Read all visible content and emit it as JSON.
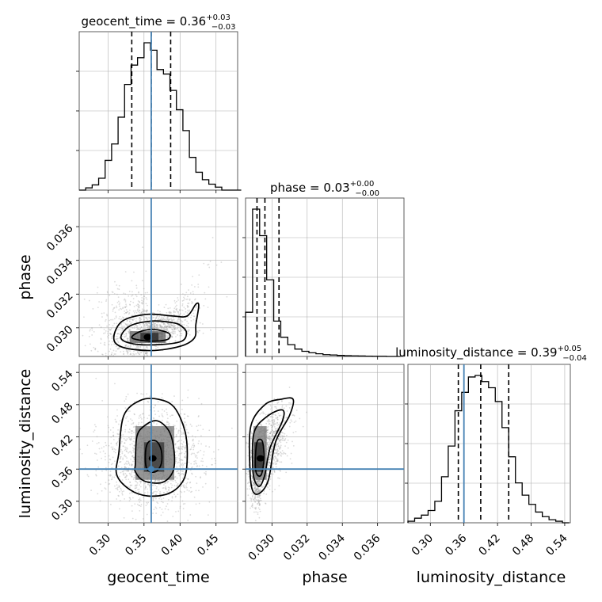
{
  "figure": {
    "type": "corner_plot",
    "colors": {
      "hist": "#000000",
      "truth": "#4682b4",
      "grid": "#b0b0b0",
      "scatter": "#9a9a9a",
      "contour": "#000000"
    }
  },
  "chart_data": [
    {
      "type": "histogram",
      "parameter": "geocent_time",
      "title": {
        "base": "geocent_time = 0.36",
        "sup": "+0.03",
        "sub": "−0.03"
      },
      "xlim": [
        0.26,
        0.48
      ],
      "bin_edges": [
        0.26,
        0.269,
        0.278,
        0.287,
        0.296,
        0.305,
        0.314,
        0.323,
        0.332,
        0.341,
        0.35,
        0.359,
        0.368,
        0.377,
        0.386,
        0.395,
        0.404,
        0.413,
        0.422,
        0.431,
        0.44,
        0.449,
        0.458,
        0.467,
        0.476,
        0.485
      ],
      "density": [
        0,
        0.015,
        0.035,
        0.08,
        0.2,
        0.31,
        0.49,
        0.71,
        0.84,
        0.89,
        0.99,
        0.94,
        0.81,
        0.78,
        0.67,
        0.54,
        0.4,
        0.22,
        0.12,
        0.07,
        0.04,
        0.02,
        0.0,
        0.0,
        0.0
      ],
      "quantile_lines": [
        0.333,
        0.36,
        0.387
      ],
      "truth": 0.36,
      "xticks": [
        0.3,
        0.35,
        0.4,
        0.45
      ]
    },
    {
      "type": "histogram",
      "parameter": "phase",
      "title": {
        "base": "phase = 0.03",
        "sup": "+0.00",
        "sub": "−0.00"
      },
      "xlim": [
        0.0285,
        0.0375
      ],
      "bin_edges": [
        0.0285,
        0.0289,
        0.0293,
        0.0297,
        0.0301,
        0.0305,
        0.0309,
        0.0313,
        0.0317,
        0.0321,
        0.0325,
        0.0329,
        0.0333,
        0.0337,
        0.0341,
        0.0345,
        0.0349,
        0.0353,
        0.0357,
        0.0361,
        0.0365,
        0.0369,
        0.0373
      ],
      "density": [
        0.3,
        1.0,
        0.82,
        0.52,
        0.24,
        0.13,
        0.08,
        0.05,
        0.035,
        0.025,
        0.018,
        0.012,
        0.01,
        0.007,
        0.005,
        0.004,
        0.003,
        0.002,
        0.001,
        0.001,
        0.0,
        0.0
      ],
      "quantile_lines": [
        0.02915,
        0.0296,
        0.0304
      ],
      "truth": null,
      "xticks": [
        0.03,
        0.032,
        0.034,
        0.036
      ]
    },
    {
      "type": "histogram",
      "parameter": "luminosity_distance",
      "title": {
        "base": "luminosity_distance = 0.39",
        "sup": "+0.05",
        "sub": "−0.04"
      },
      "xlim": [
        0.26,
        0.55
      ],
      "bin_edges": [
        0.26,
        0.272,
        0.284,
        0.296,
        0.308,
        0.32,
        0.332,
        0.344,
        0.356,
        0.368,
        0.38,
        0.392,
        0.404,
        0.416,
        0.428,
        0.44,
        0.452,
        0.464,
        0.476,
        0.488,
        0.5,
        0.512,
        0.524,
        0.536,
        0.548
      ],
      "density": [
        0.01,
        0.03,
        0.05,
        0.08,
        0.14,
        0.3,
        0.5,
        0.73,
        0.85,
        0.95,
        0.96,
        0.92,
        0.88,
        0.79,
        0.62,
        0.43,
        0.26,
        0.18,
        0.12,
        0.07,
        0.04,
        0.02,
        0.01,
        0.0
      ],
      "quantile_lines": [
        0.35,
        0.39,
        0.44
      ],
      "truth": 0.36,
      "xticks": [
        0.3,
        0.36,
        0.42,
        0.48,
        0.54
      ]
    },
    {
      "type": "2d_density",
      "x_param": "geocent_time",
      "y_param": "phase",
      "xlim": [
        0.26,
        0.48
      ],
      "ylim": [
        0.0283,
        0.0377
      ],
      "yticks": [
        0.03,
        0.032,
        0.034,
        0.036
      ],
      "truth": {
        "x": 0.36,
        "y": null
      },
      "center": [
        0.355,
        0.02945
      ],
      "contours": [
        {
          "level": 0.39,
          "points": [
            [
              0.333,
              0.02945
            ],
            [
              0.343,
              0.02975
            ],
            [
              0.36,
              0.0299
            ],
            [
              0.377,
              0.0298
            ],
            [
              0.386,
              0.0296
            ],
            [
              0.382,
              0.0293
            ],
            [
              0.36,
              0.0292
            ],
            [
              0.34,
              0.0293
            ]
          ]
        },
        {
          "level": 0.86,
          "points": [
            [
              0.318,
              0.0294
            ],
            [
              0.33,
              0.0301
            ],
            [
              0.36,
              0.0304
            ],
            [
              0.39,
              0.0303
            ],
            [
              0.402,
              0.0301
            ],
            [
              0.409,
              0.0297
            ],
            [
              0.402,
              0.0292
            ],
            [
              0.37,
              0.029
            ],
            [
              0.335,
              0.02905
            ]
          ]
        },
        {
          "level": 0.99,
          "points": [
            [
              0.308,
              0.0294
            ],
            [
              0.32,
              0.0304
            ],
            [
              0.355,
              0.0308
            ],
            [
              0.39,
              0.0307
            ],
            [
              0.41,
              0.0307
            ],
            [
              0.422,
              0.0314
            ],
            [
              0.426,
              0.0313
            ],
            [
              0.422,
              0.0302
            ],
            [
              0.42,
              0.0294
            ],
            [
              0.4,
              0.0289
            ],
            [
              0.36,
              0.02865
            ],
            [
              0.32,
              0.02885
            ]
          ]
        }
      ],
      "density_blocks": [
        {
          "x0": 0.33,
          "x1": 0.38,
          "y0": 0.0291,
          "y1": 0.0298,
          "shade": 0.65
        },
        {
          "x0": 0.345,
          "x1": 0.37,
          "y0": 0.0292,
          "y1": 0.0297,
          "shade": 0.85
        }
      ],
      "scatter_extent": {
        "x": [
          0.27,
          0.47
        ],
        "y": [
          0.0284,
          0.0368
        ]
      }
    },
    {
      "type": "2d_density",
      "x_param": "geocent_time",
      "y_param": "luminosity_distance",
      "xlim": [
        0.26,
        0.48
      ],
      "ylim": [
        0.26,
        0.555
      ],
      "yticks": [
        0.3,
        0.36,
        0.42,
        0.48,
        0.54
      ],
      "truth": {
        "x": 0.36,
        "y": 0.36
      },
      "center": [
        0.362,
        0.38
      ],
      "contours": [
        {
          "level": 0.39,
          "points": [
            [
              0.352,
              0.39
            ],
            [
              0.356,
              0.41
            ],
            [
              0.367,
              0.412
            ],
            [
              0.374,
              0.395
            ],
            [
              0.374,
              0.37
            ],
            [
              0.366,
              0.355
            ],
            [
              0.354,
              0.36
            ]
          ]
        },
        {
          "level": 0.86,
          "points": [
            [
              0.338,
              0.37
            ],
            [
              0.34,
              0.42
            ],
            [
              0.35,
              0.44
            ],
            [
              0.368,
              0.45
            ],
            [
              0.385,
              0.43
            ],
            [
              0.392,
              0.39
            ],
            [
              0.39,
              0.355
            ],
            [
              0.375,
              0.335
            ],
            [
              0.35,
              0.338
            ],
            [
              0.338,
              0.355
            ]
          ]
        },
        {
          "level": 0.99,
          "points": [
            [
              0.315,
              0.39
            ],
            [
              0.322,
              0.46
            ],
            [
              0.345,
              0.488
            ],
            [
              0.37,
              0.49
            ],
            [
              0.392,
              0.475
            ],
            [
              0.407,
              0.43
            ],
            [
              0.41,
              0.38
            ],
            [
              0.405,
              0.34
            ],
            [
              0.385,
              0.315
            ],
            [
              0.355,
              0.31
            ],
            [
              0.33,
              0.322
            ],
            [
              0.312,
              0.35
            ]
          ]
        }
      ],
      "density_blocks": [
        {
          "x0": 0.338,
          "x1": 0.392,
          "y0": 0.34,
          "y1": 0.44,
          "shade": 0.55
        },
        {
          "x0": 0.35,
          "x1": 0.378,
          "y0": 0.355,
          "y1": 0.41,
          "shade": 0.8
        }
      ],
      "scatter_extent": {
        "x": [
          0.27,
          0.47
        ],
        "y": [
          0.27,
          0.55
        ]
      }
    },
    {
      "type": "2d_density",
      "x_param": "phase",
      "y_param": "luminosity_distance",
      "xlim": [
        0.0285,
        0.0375
      ],
      "ylim": [
        0.26,
        0.555
      ],
      "truth": {
        "x": null,
        "y": 0.36
      },
      "center": [
        0.02935,
        0.38
      ],
      "contours": [
        {
          "level": 0.39,
          "points": [
            [
              0.02905,
              0.37
            ],
            [
              0.02915,
              0.41
            ],
            [
              0.02945,
              0.412
            ],
            [
              0.02955,
              0.38
            ],
            [
              0.0294,
              0.35
            ],
            [
              0.02915,
              0.35
            ]
          ]
        },
        {
          "level": 0.86,
          "points": [
            [
              0.0289,
              0.37
            ],
            [
              0.029,
              0.43
            ],
            [
              0.0298,
              0.46
            ],
            [
              0.0306,
              0.47
            ],
            [
              0.0306,
              0.45
            ],
            [
              0.0299,
              0.4
            ],
            [
              0.0296,
              0.35
            ],
            [
              0.0293,
              0.328
            ],
            [
              0.029,
              0.34
            ]
          ]
        },
        {
          "level": 0.99,
          "points": [
            [
              0.02875,
              0.36
            ],
            [
              0.0288,
              0.44
            ],
            [
              0.0296,
              0.48
            ],
            [
              0.0305,
              0.49
            ],
            [
              0.0312,
              0.49
            ],
            [
              0.031,
              0.46
            ],
            [
              0.0302,
              0.41
            ],
            [
              0.0298,
              0.34
            ],
            [
              0.0293,
              0.315
            ],
            [
              0.0289,
              0.32
            ]
          ]
        }
      ],
      "density_blocks": [
        {
          "x0": 0.02895,
          "x1": 0.0297,
          "y0": 0.34,
          "y1": 0.44,
          "shade": 0.55
        },
        {
          "x0": 0.029,
          "x1": 0.0295,
          "y0": 0.355,
          "y1": 0.41,
          "shade": 0.85
        }
      ],
      "scatter_extent": {
        "x": [
          0.0286,
          0.033
        ],
        "y": [
          0.27,
          0.54
        ]
      }
    }
  ],
  "labels": {
    "x": [
      "geocent_time",
      "phase",
      "luminosity_distance"
    ],
    "y": [
      "phase",
      "luminosity_distance"
    ]
  }
}
